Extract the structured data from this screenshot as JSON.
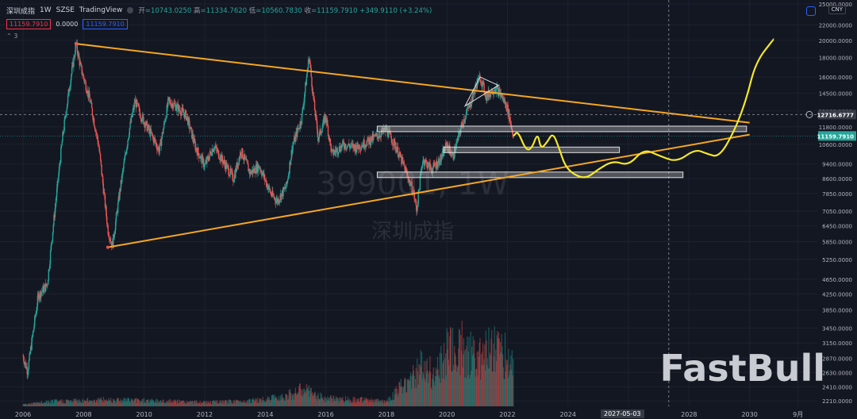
{
  "header": {
    "symbol": "深圳成指",
    "interval": "1W",
    "exchange": "SZSE",
    "source": "TradingView",
    "open_label": "开",
    "open": "=10743.0250",
    "high_label": "高",
    "high": "=11334.7620",
    "low_label": "低",
    "low": "=10560.7830",
    "close_label": "收",
    "close": "=11159.7910",
    "change": "+349.9110 (+3.24%)"
  },
  "indicators": {
    "sell": "11159.7910",
    "mid": "0.0000",
    "buy": "11159.7910",
    "count": "3"
  },
  "currency": "CNY",
  "watermark": {
    "code": "399001, 1W",
    "name": "深圳成指"
  },
  "logo": "FastBull",
  "crosshair_date": "2027-05-03",
  "colors": {
    "up": "#26a69a",
    "down": "#ef5350",
    "trendline": "#f5a623",
    "forecast": "#f5e72b",
    "bg": "#131722"
  },
  "chart_data": {
    "type": "candlestick",
    "x_ticks": [
      "2006",
      "2008",
      "2010",
      "2012",
      "2014",
      "2016",
      "2018",
      "2020",
      "2022",
      "2024",
      "2026",
      "2028",
      "2030",
      "9月"
    ],
    "x_range": [
      2005.5,
      2032.5
    ],
    "y_scale": "log",
    "y_ticks": [
      "25000.0000",
      "22000.0000",
      "20000.0000",
      "18000.0000",
      "16000.0000",
      "14500.0000",
      "13000.0000",
      "11800.0000",
      "10600.0000",
      "9400.0000",
      "8600.0000",
      "7850.0000",
      "7050.0000",
      "6450.0000",
      "5850.0000",
      "5250.0000",
      "4650.0000",
      "4250.0000",
      "3850.0000",
      "3450.0000",
      "3150.0000",
      "2870.0000",
      "2630.0000",
      "2410.0000",
      "2210.0000"
    ],
    "price_labels": [
      {
        "text": "12716.6777",
        "value": 12716.6777,
        "style": "crosshair"
      },
      {
        "text": "11159.7910",
        "value": 11159.791,
        "style": "last"
      }
    ],
    "ohlc_path": [
      [
        2006.0,
        2900
      ],
      [
        2006.15,
        2650
      ],
      [
        2006.5,
        4200
      ],
      [
        2006.8,
        4500
      ],
      [
        2007.0,
        6500
      ],
      [
        2007.3,
        11000
      ],
      [
        2007.5,
        14500
      ],
      [
        2007.75,
        19600
      ],
      [
        2007.9,
        17000
      ],
      [
        2008.2,
        14000
      ],
      [
        2008.5,
        10500
      ],
      [
        2008.8,
        6300
      ],
      [
        2008.95,
        5700
      ],
      [
        2009.2,
        8000
      ],
      [
        2009.5,
        11500
      ],
      [
        2009.7,
        13800
      ],
      [
        2009.9,
        12600
      ],
      [
        2010.3,
        11000
      ],
      [
        2010.5,
        10200
      ],
      [
        2010.8,
        13800
      ],
      [
        2011.0,
        13500
      ],
      [
        2011.4,
        12600
      ],
      [
        2011.7,
        10400
      ],
      [
        2012.0,
        9300
      ],
      [
        2012.3,
        10500
      ],
      [
        2012.7,
        9300
      ],
      [
        2012.95,
        8600
      ],
      [
        2013.2,
        10200
      ],
      [
        2013.5,
        8900
      ],
      [
        2013.8,
        9300
      ],
      [
        2014.2,
        7800
      ],
      [
        2014.4,
        7500
      ],
      [
        2014.7,
        8200
      ],
      [
        2014.9,
        10500
      ],
      [
        2015.2,
        12400
      ],
      [
        2015.45,
        18200
      ],
      [
        2015.6,
        13800
      ],
      [
        2015.75,
        11000
      ],
      [
        2016.0,
        12600
      ],
      [
        2016.2,
        10000
      ],
      [
        2016.6,
        10600
      ],
      [
        2017.0,
        10400
      ],
      [
        2017.4,
        10800
      ],
      [
        2017.8,
        11300
      ],
      [
        2018.0,
        11600
      ],
      [
        2018.3,
        10500
      ],
      [
        2018.6,
        9200
      ],
      [
        2018.9,
        7900
      ],
      [
        2019.0,
        7100
      ],
      [
        2019.2,
        9700
      ],
      [
        2019.5,
        9100
      ],
      [
        2019.8,
        9700
      ],
      [
        2020.0,
        10600
      ],
      [
        2020.2,
        9800
      ],
      [
        2020.5,
        12000
      ],
      [
        2020.8,
        13800
      ],
      [
        2021.0,
        15500
      ],
      [
        2021.1,
        16000
      ],
      [
        2021.3,
        14200
      ],
      [
        2021.6,
        15000
      ],
      [
        2021.8,
        14300
      ],
      [
        2022.0,
        13200
      ],
      [
        2022.2,
        11160
      ]
    ],
    "volume_path": [
      [
        2006.0,
        0.02
      ],
      [
        2007.0,
        0.05
      ],
      [
        2008.0,
        0.06
      ],
      [
        2009.0,
        0.07
      ],
      [
        2010.0,
        0.06
      ],
      [
        2011.0,
        0.05
      ],
      [
        2012.0,
        0.04
      ],
      [
        2013.0,
        0.05
      ],
      [
        2014.0,
        0.07
      ],
      [
        2014.8,
        0.12
      ],
      [
        2015.3,
        0.18
      ],
      [
        2015.6,
        0.12
      ],
      [
        2016.0,
        0.08
      ],
      [
        2017.0,
        0.07
      ],
      [
        2018.0,
        0.05
      ],
      [
        2019.0,
        0.35
      ],
      [
        2019.3,
        0.45
      ],
      [
        2019.6,
        0.3
      ],
      [
        2020.0,
        0.55
      ],
      [
        2020.5,
        0.6
      ],
      [
        2021.0,
        0.5
      ],
      [
        2021.5,
        0.65
      ],
      [
        2022.0,
        0.5
      ],
      [
        2022.2,
        0.45
      ]
    ],
    "annotations": {
      "triangle_upper": [
        [
          2007.75,
          19600
        ],
        [
          2030.0,
          12100
        ]
      ],
      "triangle_lower": [
        [
          2008.8,
          5650
        ],
        [
          2030.0,
          11250
        ]
      ],
      "pennant": [
        [
          2021.1,
          16000
        ],
        [
          2021.7,
          15200
        ],
        [
          2020.6,
          13400
        ]
      ],
      "zones": [
        {
          "x0": 2017.7,
          "x1": 2029.9,
          "y": 11650
        },
        {
          "x0": 2019.9,
          "x1": 2025.7,
          "y": 10250
        },
        {
          "x0": 2017.7,
          "x1": 2027.8,
          "y": 8800
        }
      ],
      "forecast_path": [
        [
          2022.2,
          11160
        ],
        [
          2022.35,
          11500
        ],
        [
          2022.6,
          10250
        ],
        [
          2022.8,
          10300
        ],
        [
          2023.0,
          11400
        ],
        [
          2023.1,
          10300
        ],
        [
          2023.3,
          10700
        ],
        [
          2023.5,
          11400
        ],
        [
          2023.7,
          10400
        ],
        [
          2023.9,
          9300
        ],
        [
          2024.2,
          8800
        ],
        [
          2024.6,
          8600
        ],
        [
          2025.0,
          9100
        ],
        [
          2025.5,
          9600
        ],
        [
          2026.0,
          9300
        ],
        [
          2026.5,
          10300
        ],
        [
          2027.0,
          9900
        ],
        [
          2027.6,
          9500
        ],
        [
          2028.2,
          10300
        ],
        [
          2028.6,
          10000
        ],
        [
          2029.0,
          9800
        ],
        [
          2029.5,
          11500
        ],
        [
          2029.9,
          14000
        ],
        [
          2030.2,
          17500
        ],
        [
          2030.8,
          20200
        ]
      ]
    }
  }
}
